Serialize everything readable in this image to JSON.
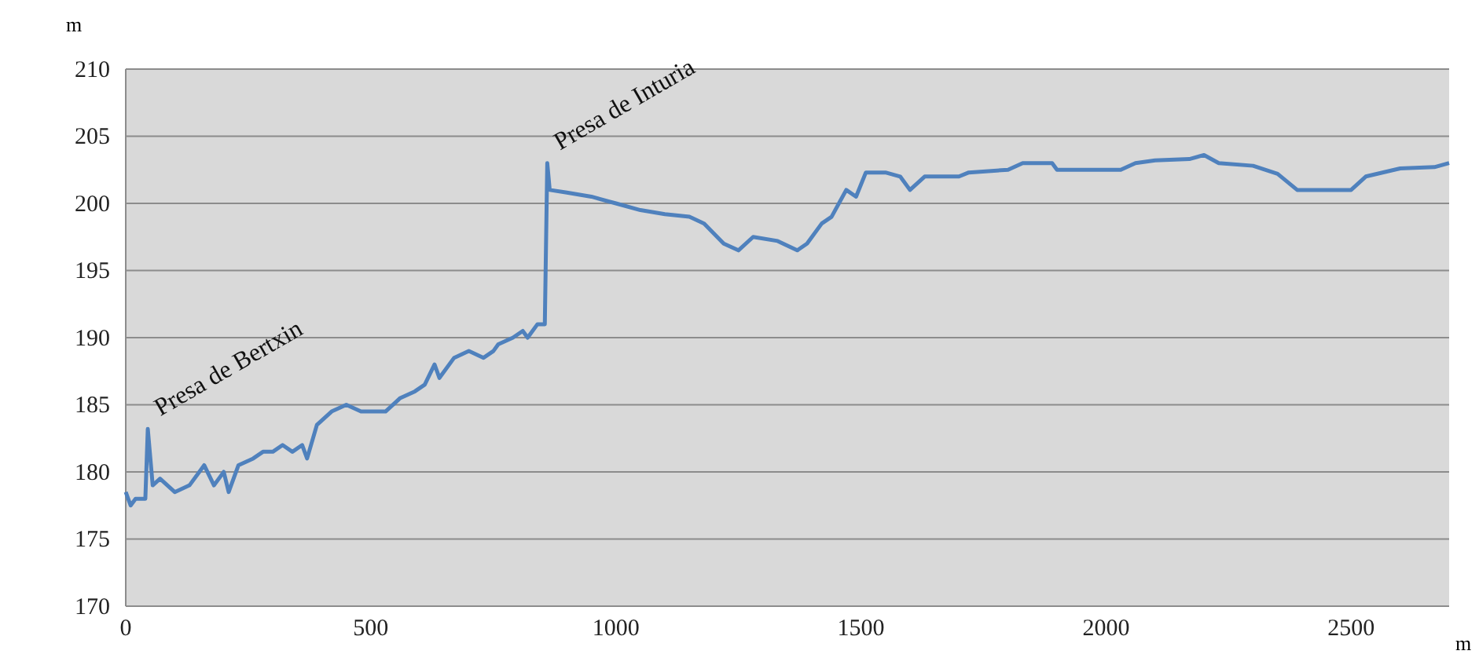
{
  "chart_data": {
    "type": "line",
    "xlabel": "m",
    "ylabel": "m",
    "xlim": [
      0,
      2700
    ],
    "xticks": [
      0,
      500,
      1000,
      1500,
      2000,
      2500
    ],
    "ylim": [
      170,
      210
    ],
    "yticks": [
      170,
      175,
      180,
      185,
      190,
      195,
      200,
      205,
      210
    ],
    "grid": "y",
    "marker": "none",
    "line_style": "solid",
    "annotations": [
      {
        "text": "Presa de Bertxin",
        "x": 45,
        "y": 183.2
      },
      {
        "text": "Presa de Inturia",
        "x": 860,
        "y": 203
      }
    ],
    "series": [
      {
        "color": "#4f81bd",
        "x": [
          0,
          10,
          20,
          40,
          45,
          55,
          70,
          100,
          130,
          160,
          180,
          200,
          210,
          230,
          260,
          280,
          300,
          320,
          340,
          360,
          370,
          390,
          420,
          450,
          480,
          530,
          560,
          590,
          610,
          630,
          640,
          670,
          700,
          730,
          750,
          760,
          790,
          810,
          820,
          840,
          855,
          860,
          865,
          900,
          950,
          1000,
          1050,
          1100,
          1150,
          1180,
          1220,
          1250,
          1280,
          1330,
          1370,
          1390,
          1420,
          1440,
          1470,
          1490,
          1510,
          1550,
          1580,
          1600,
          1630,
          1700,
          1720,
          1800,
          1830,
          1890,
          1900,
          2000,
          2030,
          2060,
          2100,
          2170,
          2200,
          2230,
          2300,
          2350,
          2390,
          2500,
          2530,
          2600,
          2670,
          2700
        ],
        "values": [
          178.5,
          177.5,
          178,
          178,
          183.2,
          179,
          179.5,
          178.5,
          179,
          180.5,
          179,
          180,
          178.5,
          180.5,
          181,
          181.5,
          181.5,
          182,
          181.5,
          182,
          181,
          183.5,
          184.5,
          185,
          184.5,
          184.5,
          185.5,
          186,
          186.5,
          188,
          187,
          188.5,
          189,
          188.5,
          189,
          189.5,
          190,
          190.5,
          190,
          191,
          191,
          203,
          201,
          200.8,
          200.5,
          200,
          199.5,
          199.2,
          199,
          198.5,
          197,
          196.5,
          197.5,
          197.2,
          196.5,
          197,
          198.5,
          199,
          201,
          200.5,
          202.3,
          202.3,
          202,
          201,
          202,
          202,
          202.3,
          202.5,
          203,
          203,
          202.5,
          202.5,
          202.5,
          203,
          203.2,
          203.3,
          203.6,
          203,
          202.8,
          202.2,
          201,
          201,
          202,
          202.6,
          202.7,
          203
        ]
      }
    ]
  }
}
